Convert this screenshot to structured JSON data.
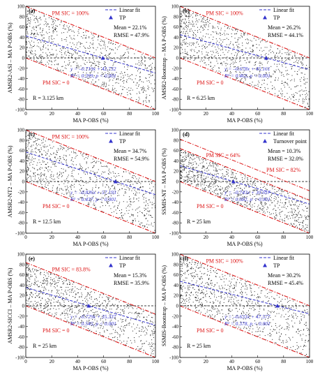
{
  "chart_data": [
    {
      "type": "scatter",
      "panel": "(a)",
      "xlabel": "MA P-OBS (%)",
      "ylabel": "AMSR2-ASI – MA P-OBS (%)",
      "xlim": [
        0,
        100
      ],
      "ylim": [
        -100,
        100
      ],
      "xticks": [
        0,
        20,
        40,
        60,
        80,
        100
      ],
      "yticks": [
        -100,
        -80,
        -60,
        -40,
        -20,
        0,
        20,
        40,
        60,
        80,
        100
      ],
      "series": [
        {
          "name": "Linear fit",
          "slope": -0.719,
          "intercept": 42.732
        }
      ],
      "tp": {
        "label": "TP",
        "x": 59.4,
        "y": 0
      },
      "bounds": {
        "upper_label": "PM SIC = 100%",
        "upper_sic": 100,
        "lower_label": "PM SIC = 0",
        "lower_sic": 0
      },
      "annotations": {
        "equation": "y = –0.719x + 42.732",
        "r2": "R² = 0.399, p < 0.001",
        "mean": "Mean = 22.1%",
        "rmse": "RMSE = 47.9%",
        "resolution": "R = 3.125 km"
      }
    },
    {
      "type": "scatter",
      "panel": "(b)",
      "xlabel": "MA P-OBS (%)",
      "ylabel": "AMSR2-Bootstrap – MA P-OBS (%)",
      "xlim": [
        0,
        100
      ],
      "ylim": [
        -100,
        100
      ],
      "xticks": [
        0,
        20,
        40,
        60,
        80,
        100
      ],
      "yticks": [
        -100,
        -80,
        -60,
        -40,
        -20,
        0,
        20,
        40,
        60,
        80,
        100
      ],
      "series": [
        {
          "name": "Linear fit",
          "slope": -0.678,
          "intercept": 45.161
        }
      ],
      "tp": {
        "label": "TP",
        "x": 66.6,
        "y": 0
      },
      "bounds": {
        "upper_label": "PM SIC = 100%",
        "upper_sic": 100,
        "lower_label": "PM SIC = 0",
        "lower_sic": 0
      },
      "annotations": {
        "equation": "y = –0.678x + 45.161",
        "r2": "R² = 0.462, p < 0.001",
        "mean": "Mean = 26.2%",
        "rmse": "RMSE = 44.1%",
        "resolution": "R = 6.25 km"
      }
    },
    {
      "type": "scatter",
      "panel": "(c)",
      "xlabel": "MA P-OBS (%)",
      "ylabel": "AMSR2-NT2 – MA P-OBS (%)",
      "xlim": [
        0,
        100
      ],
      "ylim": [
        -100,
        100
      ],
      "xticks": [
        0,
        20,
        40,
        60,
        80,
        100
      ],
      "yticks": [
        -100,
        -80,
        -60,
        -40,
        -20,
        0,
        20,
        40,
        60,
        80,
        100
      ],
      "series": [
        {
          "name": "Linear fit",
          "slope": -0.826,
          "intercept": 57.193
        }
      ],
      "tp": {
        "label": "TP",
        "x": 69.2,
        "y": 0
      },
      "bounds": {
        "upper_label": "PM SIC = 100%",
        "upper_sic": 100,
        "lower_label": "PM SIC = 0",
        "lower_sic": 0
      },
      "annotations": {
        "equation": "y = –0.826x + 57.193",
        "r2": "R² = 0.437, p < 0.001",
        "mean": "Mean = 34.7%",
        "rmse": "RMSE = 54.9%",
        "resolution": "R = 12.5 km"
      }
    },
    {
      "type": "scatter",
      "panel": "(d)",
      "xlabel": "MA P-OBS (%)",
      "ylabel": "SSMIS-NT – MA P-OBS (%)",
      "xlim": [
        0,
        100
      ],
      "ylim": [
        -100,
        100
      ],
      "xticks": [
        0,
        20,
        40,
        60,
        80,
        100
      ],
      "yticks": [
        -100,
        -80,
        -60,
        -40,
        -20,
        0,
        20,
        40,
        60,
        80,
        100
      ],
      "series": [
        {
          "name": "Linear fit",
          "slope": -0.743,
          "intercept": 30.657
        }
      ],
      "tp": {
        "label": "Turnover point",
        "x": 41.3,
        "y": 0
      },
      "bounds": {
        "upper_label": "PM SIC = 64%",
        "upper_sic": 64,
        "lower_label": "PM SIC = 0",
        "lower_sic": 0,
        "extra_label": "PM SIC = 82%",
        "extra_sic": 82
      },
      "annotations": {
        "equation": "y = –0.743x + 30.657",
        "r2": "R² = 0.682, p < 0.001",
        "mean": "Mean = 10.3%",
        "rmse": "RMSE = 32.0%",
        "resolution": "R = 25 km"
      }
    },
    {
      "type": "scatter",
      "panel": "(e)",
      "xlabel": "MA P-OBS (%)",
      "ylabel": "AMSR2-SICCI – MA P-OBS (%)",
      "xlim": [
        0,
        100
      ],
      "ylim": [
        -100,
        100
      ],
      "xticks": [
        0,
        20,
        40,
        60,
        80,
        100
      ],
      "yticks": [
        -100,
        -80,
        -60,
        -40,
        -20,
        0,
        20,
        40,
        60,
        80,
        100
      ],
      "series": [
        {
          "name": "Linear fit",
          "slope": -0.729,
          "intercept": 35.337
        }
      ],
      "tp": {
        "label": "TP",
        "x": 48.5,
        "y": 0
      },
      "bounds": {
        "upper_label": "PM SIC = 83.8%",
        "upper_sic": 83.8,
        "lower_label": "PM SIC = 0",
        "lower_sic": 0
      },
      "annotations": {
        "equation": "y = –0.729x + 35.337",
        "r2": "R² = 0.545, p < 0.001",
        "mean": "Mean = 15.3%",
        "rmse": "RMSE = 35.9%",
        "resolution": "R = 25 km"
      }
    },
    {
      "type": "scatter",
      "panel": "(f)",
      "xlabel": "MA P-OBS (%)",
      "ylabel": "SSMIS-Bootstrap – MA P-OBS (%)",
      "xlim": [
        0,
        100
      ],
      "ylim": [
        -100,
        100
      ],
      "xticks": [
        0,
        20,
        40,
        60,
        80,
        100
      ],
      "yticks": [
        -100,
        -80,
        -60,
        -40,
        -20,
        0,
        20,
        40,
        60,
        80,
        100
      ],
      "series": [
        {
          "name": "Linear fit",
          "slope": -0.633,
          "intercept": 47.577
        }
      ],
      "tp": {
        "label": "TP",
        "x": 75.2,
        "y": 0
      },
      "bounds": {
        "upper_label": "PM SIC = 100%",
        "upper_sic": 100,
        "lower_label": "PM SIC = 0",
        "lower_sic": 0
      },
      "annotations": {
        "equation": "y = –0.633x + 47.577",
        "r2": "R² = 0.378, p < 0.001",
        "mean": "Mean = 30.2%",
        "rmse": "RMSE = 45.4%",
        "resolution": "R = 25 km"
      }
    }
  ],
  "colors": {
    "fit": "#3333cc",
    "bound": "#dd1111",
    "points": "#222222",
    "zero": "#000000"
  }
}
